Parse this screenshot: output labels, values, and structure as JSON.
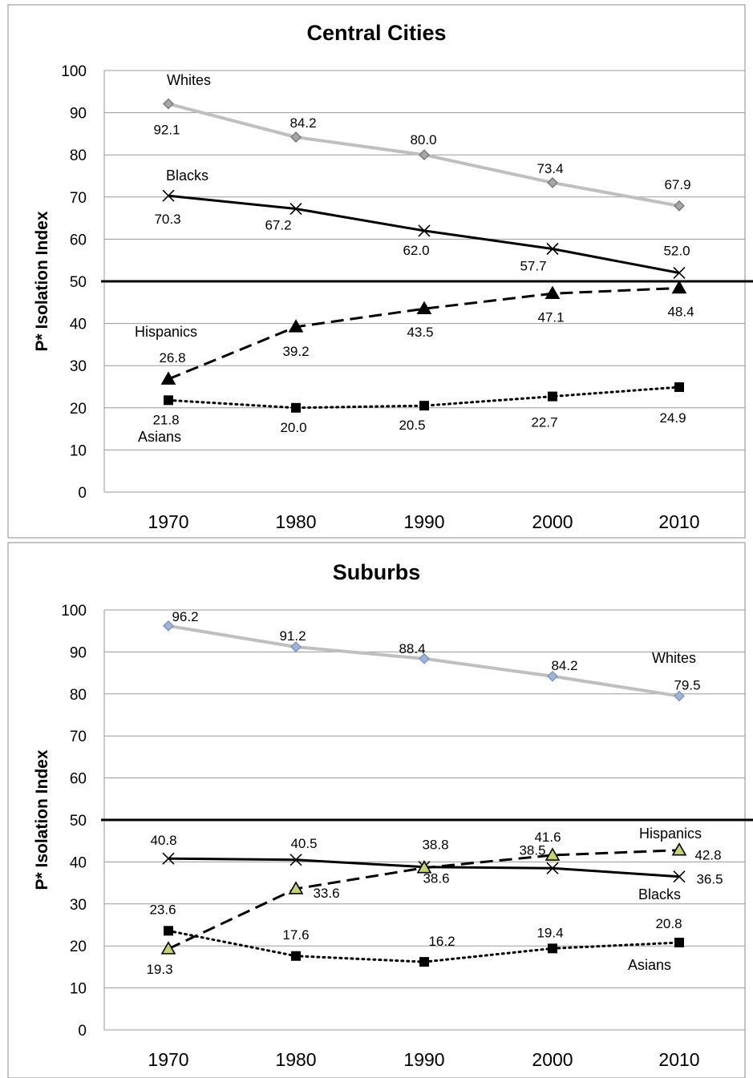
{
  "chart_data": [
    {
      "type": "line",
      "title": "Central Cities",
      "ylabel": "P* Isolation Index",
      "xlabel": "",
      "categories": [
        "1970",
        "1980",
        "1990",
        "2000",
        "2010"
      ],
      "ylim": [
        0,
        100
      ],
      "yticks": [
        "0",
        "10",
        "20",
        "30",
        "40",
        "50",
        "60",
        "70",
        "80",
        "90",
        "100"
      ],
      "reference_line": 50,
      "grid": true,
      "series": [
        {
          "name": "Whites",
          "values": [
            92.1,
            84.2,
            80.0,
            73.4,
            67.9
          ],
          "labels": [
            "92.1",
            "84.2",
            "80.0",
            "73.4",
            "67.9"
          ],
          "color": "#bfbfbf",
          "marker": "diamond",
          "dash": "solid"
        },
        {
          "name": "Blacks",
          "values": [
            70.3,
            67.2,
            62.0,
            57.7,
            52.0
          ],
          "labels": [
            "70.3",
            "67.2",
            "62.0",
            "57.7",
            "52.0"
          ],
          "color": "#000000",
          "marker": "x",
          "dash": "solid"
        },
        {
          "name": "Hispanics",
          "values": [
            26.8,
            39.2,
            43.5,
            47.1,
            48.4
          ],
          "labels": [
            "26.8",
            "39.2",
            "43.5",
            "47.1",
            "48.4"
          ],
          "color": "#000000",
          "marker": "triangle",
          "dash": "dashed"
        },
        {
          "name": "Asians",
          "values": [
            21.8,
            20.0,
            20.5,
            22.7,
            24.9
          ],
          "labels": [
            "21.8",
            "20.0",
            "20.5",
            "22.7",
            "24.9"
          ],
          "color": "#000000",
          "marker": "square",
          "dash": "dotted"
        }
      ]
    },
    {
      "type": "line",
      "title": "Suburbs",
      "ylabel": "P* Isolation Index",
      "xlabel": "",
      "categories": [
        "1970",
        "1980",
        "1990",
        "2000",
        "2010"
      ],
      "ylim": [
        0,
        100
      ],
      "yticks": [
        "0",
        "10",
        "20",
        "30",
        "40",
        "50",
        "60",
        "70",
        "80",
        "90",
        "100"
      ],
      "reference_line": 50,
      "grid": true,
      "series": [
        {
          "name": "Whites",
          "values": [
            96.2,
            91.2,
            88.4,
            84.2,
            79.5
          ],
          "labels": [
            "96.2",
            "91.2",
            "88.4",
            "84.2",
            "79.5"
          ],
          "color": "#bfbfbf",
          "marker": "diamond-blue",
          "dash": "solid"
        },
        {
          "name": "Blacks",
          "values": [
            40.8,
            40.5,
            38.8,
            38.5,
            36.5
          ],
          "labels": [
            "40.8",
            "40.5",
            "38.8",
            "38.5",
            "36.5"
          ],
          "color": "#000000",
          "marker": "x",
          "dash": "solid"
        },
        {
          "name": "Hispanics",
          "values": [
            19.3,
            33.6,
            38.6,
            41.6,
            42.8
          ],
          "labels": [
            "19.3",
            "33.6",
            "38.6",
            "41.6",
            "42.8"
          ],
          "color": "#000000",
          "marker": "triangle-green",
          "dash": "dashed"
        },
        {
          "name": "Asians",
          "values": [
            23.6,
            17.6,
            16.2,
            19.4,
            20.8
          ],
          "labels": [
            "23.6",
            "17.6",
            "16.2",
            "19.4",
            "20.8"
          ],
          "color": "#000000",
          "marker": "square",
          "dash": "dotted"
        }
      ]
    }
  ]
}
